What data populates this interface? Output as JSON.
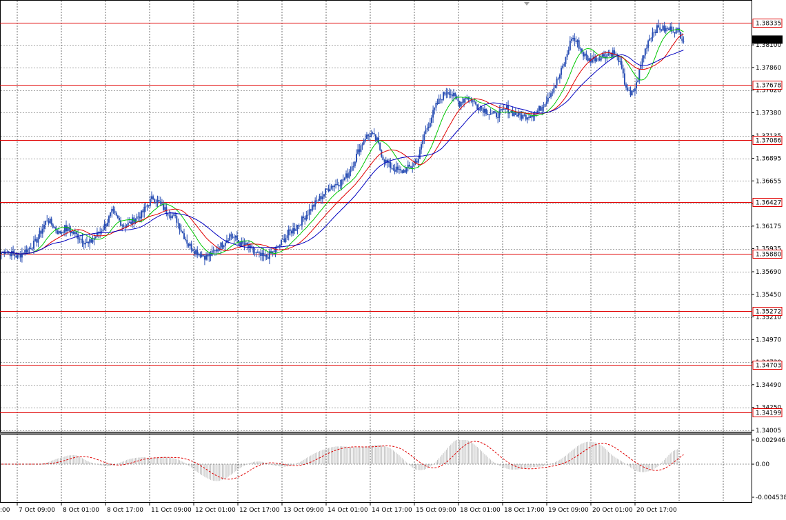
{
  "chart_data": [
    {
      "type": "candlestick",
      "symbol_hint": "",
      "price_axis": {
        "min": 1.34005,
        "max": 1.38335,
        "tick_labels": [
          "1.38100",
          "1.37860",
          "1.37620",
          "1.37380",
          "1.37135",
          "1.36895",
          "1.36655",
          "1.36415",
          "1.36175",
          "1.35935",
          "1.35690",
          "1.35450",
          "1.35210",
          "1.34970",
          "1.34730",
          "1.34490",
          "1.34250",
          "1.34005"
        ]
      },
      "current_price": "1.38156",
      "levels": [
        {
          "label": "1.38335",
          "value": 1.38335
        },
        {
          "label": "1.37678",
          "value": 1.37678
        },
        {
          "label": "1.37086",
          "value": 1.37086
        },
        {
          "label": "1.36427",
          "value": 1.36427
        },
        {
          "label": "1.35880",
          "value": 1.3588
        },
        {
          "label": "1.35272",
          "value": 1.35272
        },
        {
          "label": "1.34703",
          "value": 1.34703
        },
        {
          "label": "1.34199",
          "value": 1.34199
        }
      ],
      "time_axis": {
        "labels": [
          "7 Oct 09:00",
          "8 Oct 01:00",
          "8 Oct 17:00",
          "11 Oct 09:00",
          "12 Oct 01:00",
          "12 Oct 17:00",
          "13 Oct 09:00",
          "14 Oct 01:00",
          "14 Oct 17:00",
          "15 Oct 09:00",
          "18 Oct 01:00",
          "18 Oct 17:00",
          "19 Oct 09:00",
          "20 Oct 01:00",
          "20 Oct 17:00"
        ],
        "left_edge_fragment": ":00"
      },
      "close_series": [
        1.3592,
        1.3588,
        1.3585,
        1.359,
        1.3594,
        1.36,
        1.3612,
        1.3625,
        1.3618,
        1.361,
        1.3615,
        1.3612,
        1.3608,
        1.3603,
        1.3598,
        1.3605,
        1.3612,
        1.362,
        1.3632,
        1.3625,
        1.3618,
        1.362,
        1.3626,
        1.363,
        1.364,
        1.3648,
        1.3642,
        1.3635,
        1.363,
        1.3624,
        1.361,
        1.3598,
        1.3592,
        1.3588,
        1.3585,
        1.3588,
        1.3594,
        1.36,
        1.3608,
        1.3604,
        1.3598,
        1.3596,
        1.359,
        1.3586,
        1.3584,
        1.3588,
        1.3594,
        1.3602,
        1.361,
        1.3615,
        1.3622,
        1.363,
        1.3638,
        1.3645,
        1.3652,
        1.366,
        1.3662,
        1.3665,
        1.3672,
        1.3685,
        1.37,
        1.3712,
        1.3715,
        1.3708,
        1.369,
        1.3682,
        1.3678,
        1.3675,
        1.3678,
        1.3682,
        1.369,
        1.3715,
        1.373,
        1.3745,
        1.3755,
        1.3762,
        1.3755,
        1.3748,
        1.3755,
        1.3752,
        1.3745,
        1.3742,
        1.3738,
        1.3735,
        1.3738,
        1.3742,
        1.3738,
        1.3735,
        1.3734,
        1.3736,
        1.3738,
        1.3745,
        1.3755,
        1.3765,
        1.3778,
        1.3795,
        1.3818,
        1.3812,
        1.38,
        1.3794,
        1.3796,
        1.3798,
        1.38,
        1.3802,
        1.3795,
        1.377,
        1.3755,
        1.3768,
        1.3795,
        1.3815,
        1.3826,
        1.3828,
        1.3826,
        1.3827,
        1.3825,
        1.3816
      ],
      "indicators": {
        "ma_fast": {
          "color": "#00c800",
          "period": 8
        },
        "ma_mid": {
          "color": "#e00000",
          "period": 14
        },
        "ma_slow": {
          "color": "#0000c0",
          "period": 21
        }
      },
      "oscillator": {
        "type": "histogram",
        "tick_labels": [
          "0.002946",
          "0.00",
          "-0.004538"
        ],
        "max": 0.002946,
        "min": -0.004538,
        "signal_color": "#e00000",
        "bar_color": "#c0c0c0"
      }
    }
  ],
  "colors": {
    "candle": "#2a4fb4",
    "level_line": "#e00000",
    "grid": "#000000",
    "current_price_bg": "#000000"
  }
}
